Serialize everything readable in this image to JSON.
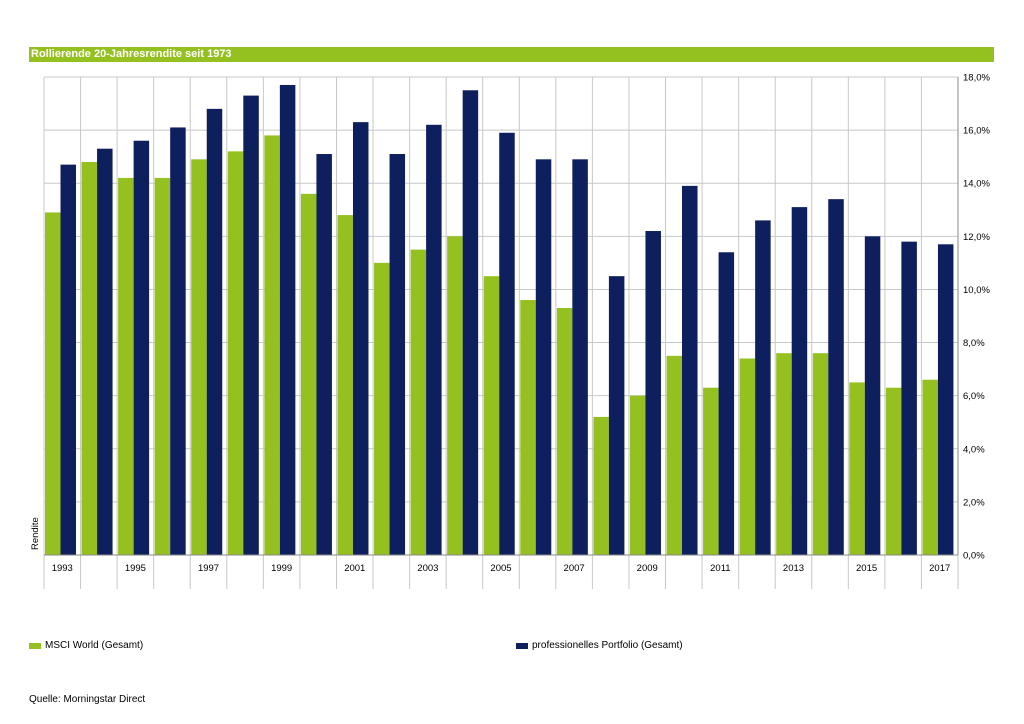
{
  "colors": {
    "accent": "#94c11f",
    "series1": "#94c11f",
    "series2": "#0d1f5c"
  },
  "source_label": "Quelle: Morningstar Direct",
  "chart_data": {
    "type": "bar",
    "title": "Rollierende 20-Jahresrendite seit 1973",
    "ylabel": "Rendite",
    "xlabel": "",
    "ylim": [
      0,
      18
    ],
    "y_ticks": [
      0,
      2,
      4,
      6,
      8,
      10,
      12,
      14,
      16,
      18
    ],
    "y_tick_labels": [
      "0,0%",
      "2,0%",
      "4,0%",
      "6,0%",
      "8,0%",
      "10,0%",
      "12,0%",
      "14,0%",
      "16,0%",
      "18,0%"
    ],
    "y_axis_side": "right",
    "grid": true,
    "legend_position": "bottom",
    "categories": [
      "1993",
      "1994",
      "1995",
      "1996",
      "1997",
      "1998",
      "1999",
      "2000",
      "2001",
      "2002",
      "2003",
      "2004",
      "2005",
      "2006",
      "2007",
      "2008",
      "2009",
      "2010",
      "2011",
      "2012",
      "2013",
      "2014",
      "2015",
      "2016",
      "2017"
    ],
    "x_tick_labels": [
      "1993",
      "",
      "1995",
      "",
      "1997",
      "",
      "1999",
      "",
      "2001",
      "",
      "2003",
      "",
      "2005",
      "",
      "2007",
      "",
      "2009",
      "",
      "2011",
      "",
      "2013",
      "",
      "2015",
      "",
      "2017"
    ],
    "series": [
      {
        "name": "MSCI World (Gesamt)",
        "color": "#94c11f",
        "values": [
          12.9,
          14.8,
          14.2,
          14.2,
          14.9,
          15.2,
          15.8,
          13.6,
          12.8,
          11.0,
          11.5,
          12.0,
          10.5,
          9.6,
          9.3,
          5.2,
          6.0,
          7.5,
          6.3,
          7.4,
          7.6,
          7.6,
          6.5,
          6.3,
          6.6
        ]
      },
      {
        "name": "professionelles Portfolio (Gesamt)",
        "color": "#0d1f5c",
        "values": [
          14.7,
          15.3,
          15.6,
          16.1,
          16.8,
          17.3,
          17.7,
          15.1,
          16.3,
          15.1,
          16.2,
          17.5,
          15.9,
          14.9,
          14.9,
          10.5,
          12.2,
          13.9,
          11.4,
          12.6,
          13.1,
          13.4,
          12.0,
          11.8,
          11.7
        ]
      }
    ]
  }
}
